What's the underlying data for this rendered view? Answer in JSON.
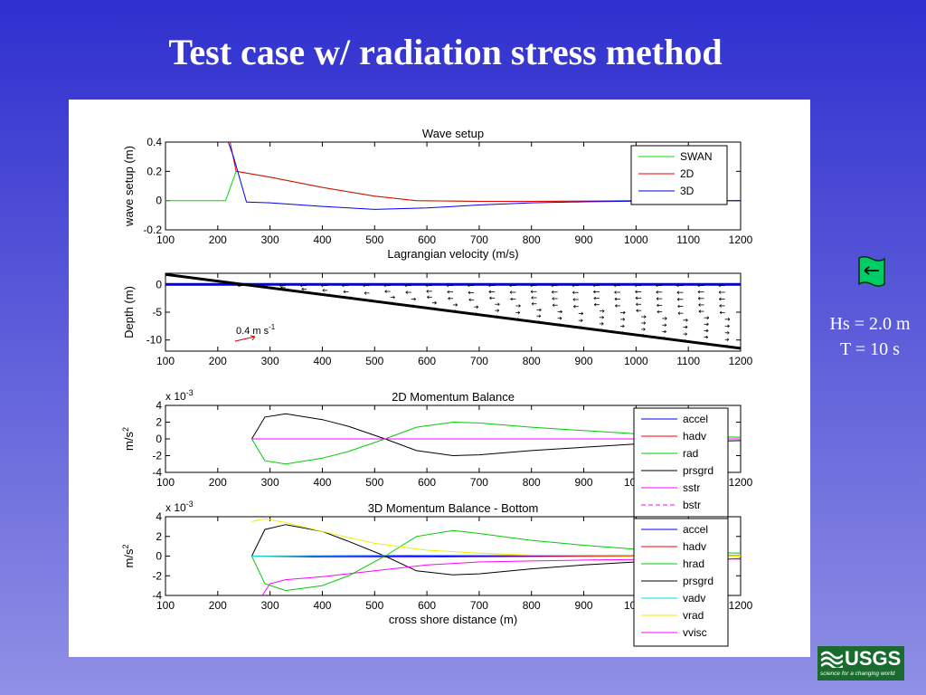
{
  "slide": {
    "title": "Test case w/ radiation stress method"
  },
  "wave_params": {
    "hs": "Hs = 2.0 m",
    "t": "T = 10 s"
  },
  "logo": {
    "word": "USGS",
    "tagline": "science for a changing world"
  },
  "chart_data": [
    {
      "type": "line",
      "title": "Wave setup",
      "xlabel": "Lagrangian velocity (m/s)",
      "ylabel": "wave setup (m)",
      "xlim": [
        100,
        1200
      ],
      "ylim": [
        -0.2,
        0.4
      ],
      "xticks": [
        100,
        200,
        300,
        400,
        500,
        600,
        700,
        800,
        900,
        1000,
        1100,
        1200
      ],
      "yticks": [
        -0.2,
        0,
        0.2,
        0.4
      ],
      "ytick_labels": [
        "-0.2",
        "0",
        "0.2",
        "0.4"
      ],
      "legend_position": "top-right",
      "series": [
        {
          "name": "SWAN",
          "color": "#00dd00",
          "x": [
            100,
            215,
            235,
            300,
            400,
            500,
            580,
            700,
            800,
            900,
            1000,
            1100,
            1200
          ],
          "y": [
            0,
            0,
            0.2,
            0.16,
            0.09,
            0.03,
            0,
            -0.005,
            -0.005,
            -0.003,
            0,
            0,
            0
          ]
        },
        {
          "name": "2D",
          "color": "#ee0000",
          "x": [
            215,
            235,
            300,
            400,
            500,
            580,
            700,
            800,
            900,
            1000,
            1100,
            1200
          ],
          "y": [
            0.55,
            0.2,
            0.16,
            0.09,
            0.03,
            0,
            -0.005,
            -0.005,
            -0.003,
            0,
            0,
            0
          ]
        },
        {
          "name": "3D",
          "color": "#0000ee",
          "x": [
            210,
            230,
            255,
            300,
            400,
            500,
            600,
            700,
            800,
            900,
            1000,
            1100,
            1200
          ],
          "y": [
            0.5,
            0.3,
            -0.01,
            -0.015,
            -0.04,
            -0.06,
            -0.05,
            -0.03,
            -0.015,
            -0.008,
            -0.003,
            0,
            0
          ]
        }
      ]
    },
    {
      "type": "quiver",
      "title": "",
      "xlabel": "",
      "ylabel": "Depth (m)",
      "xlim": [
        100,
        1200
      ],
      "ylim": [
        -12,
        2
      ],
      "xticks": [
        100,
        200,
        300,
        400,
        500,
        600,
        700,
        800,
        900,
        1000,
        1100,
        1200
      ],
      "yticks": [
        -10,
        -5,
        0
      ],
      "ytick_labels": [
        "-10",
        "-5",
        "0"
      ],
      "scale_label": "0.4 m s",
      "scale_exponent": "-1",
      "bathymetry": {
        "x": [
          100,
          1200
        ],
        "y": [
          1.8,
          -11.5
        ]
      },
      "surface": {
        "x": [
          100,
          1200
        ],
        "y": [
          0,
          0
        ]
      },
      "arrow_columns_x": [
        250,
        290,
        330,
        370,
        410,
        450,
        490,
        530,
        570,
        610,
        650,
        690,
        730,
        770,
        810,
        850,
        890,
        930,
        970,
        1010,
        1050,
        1090,
        1130,
        1170
      ]
    },
    {
      "type": "line",
      "title": "2D Momentum Balance",
      "xlabel": "",
      "ylabel": "m/s",
      "ylabel_exponent": "2",
      "scale_note": "x 10",
      "scale_note_exponent": "-3",
      "xlim": [
        100,
        1200
      ],
      "ylim": [
        -4,
        4
      ],
      "xticks": [
        100,
        200,
        300,
        400,
        500,
        600,
        700,
        800,
        900,
        1000,
        1100,
        1200
      ],
      "yticks": [
        -4,
        -2,
        0,
        2,
        4
      ],
      "ytick_labels": [
        "-4",
        "-2",
        "0",
        "2",
        "4"
      ],
      "legend_position": "right",
      "series": [
        {
          "name": "accel",
          "color": "#0000ff",
          "x": [
            265,
            1200
          ],
          "y": [
            0,
            0
          ]
        },
        {
          "name": "hadv",
          "color": "#ff0000",
          "x": [
            265,
            1200
          ],
          "y": [
            0,
            0
          ]
        },
        {
          "name": "rad",
          "color": "#00cc00",
          "x": [
            265,
            290,
            330,
            400,
            450,
            520,
            580,
            650,
            700,
            800,
            900,
            1000,
            1100,
            1200
          ],
          "y": [
            0,
            -2.6,
            -3.0,
            -2.3,
            -1.5,
            0,
            1.4,
            2.0,
            1.9,
            1.4,
            1.0,
            0.6,
            0.35,
            0.2
          ]
        },
        {
          "name": "prsgrd",
          "color": "#000000",
          "x": [
            265,
            290,
            330,
            400,
            450,
            520,
            580,
            650,
            700,
            800,
            900,
            1000,
            1100,
            1200
          ],
          "y": [
            0,
            2.6,
            3.0,
            2.3,
            1.5,
            0,
            -1.4,
            -2.0,
            -1.9,
            -1.4,
            -1.0,
            -0.6,
            -0.35,
            -0.2
          ]
        },
        {
          "name": "sstr",
          "color": "#ff00ff",
          "x": [
            265,
            1200
          ],
          "y": [
            0,
            0
          ]
        },
        {
          "name": "bstr",
          "color": "#ff00ff",
          "dashed": true,
          "x": [
            265,
            1200
          ],
          "y": [
            0,
            0
          ]
        }
      ]
    },
    {
      "type": "line",
      "title": "3D Momentum Balance - Bottom",
      "xlabel": "cross shore distance (m)",
      "ylabel": "m/s",
      "ylabel_exponent": "2",
      "scale_note": "x 10",
      "scale_note_exponent": "-3",
      "xlim": [
        100,
        1200
      ],
      "ylim": [
        -4,
        4
      ],
      "xticks": [
        100,
        200,
        300,
        400,
        500,
        600,
        700,
        800,
        900,
        1000,
        1100,
        1200
      ],
      "yticks": [
        -4,
        -2,
        0,
        2,
        4
      ],
      "ytick_labels": [
        "-4",
        "-2",
        "0",
        "2",
        "4"
      ],
      "legend_position": "right",
      "series": [
        {
          "name": "accel",
          "color": "#0000ff",
          "x": [
            265,
            1200
          ],
          "y": [
            0,
            0
          ]
        },
        {
          "name": "hadv",
          "color": "#ff0000",
          "x": [
            265,
            400,
            600,
            800,
            1000,
            1200
          ],
          "y": [
            0,
            -0.1,
            -0.1,
            -0.05,
            0,
            0
          ]
        },
        {
          "name": "hrad",
          "color": "#00cc00",
          "x": [
            265,
            290,
            330,
            400,
            450,
            520,
            580,
            650,
            700,
            800,
            900,
            1000,
            1100,
            1200
          ],
          "y": [
            0,
            -2.8,
            -3.5,
            -3.0,
            -2.0,
            0,
            2.0,
            2.6,
            2.3,
            1.6,
            1.1,
            0.7,
            0.4,
            0.3
          ]
        },
        {
          "name": "prsgrd",
          "color": "#000000",
          "x": [
            265,
            290,
            330,
            400,
            450,
            520,
            580,
            650,
            700,
            800,
            900,
            1000,
            1100,
            1200
          ],
          "y": [
            0,
            2.7,
            3.2,
            2.5,
            1.5,
            0,
            -1.5,
            -1.9,
            -1.8,
            -1.3,
            -0.9,
            -0.6,
            -0.4,
            -0.25
          ]
        },
        {
          "name": "vadv",
          "color": "#00dddd",
          "x": [
            265,
            600,
            1200
          ],
          "y": [
            0,
            0.1,
            0.1
          ]
        },
        {
          "name": "vrad",
          "color": "#eeee00",
          "x": [
            265,
            290,
            330,
            400,
            500,
            600,
            700,
            800,
            1200
          ],
          "y": [
            3.5,
            3.8,
            3.4,
            2.5,
            1.3,
            0.6,
            0.3,
            0.1,
            0
          ]
        },
        {
          "name": "vvisc",
          "color": "#ff00ff",
          "x": [
            285,
            300,
            330,
            400,
            500,
            600,
            700,
            800,
            900,
            1000,
            1100,
            1200
          ],
          "y": [
            -4,
            -2.8,
            -2.4,
            -2.1,
            -1.5,
            -0.9,
            -0.6,
            -0.5,
            -0.4,
            -0.35,
            -0.3,
            -0.3
          ]
        }
      ]
    }
  ]
}
